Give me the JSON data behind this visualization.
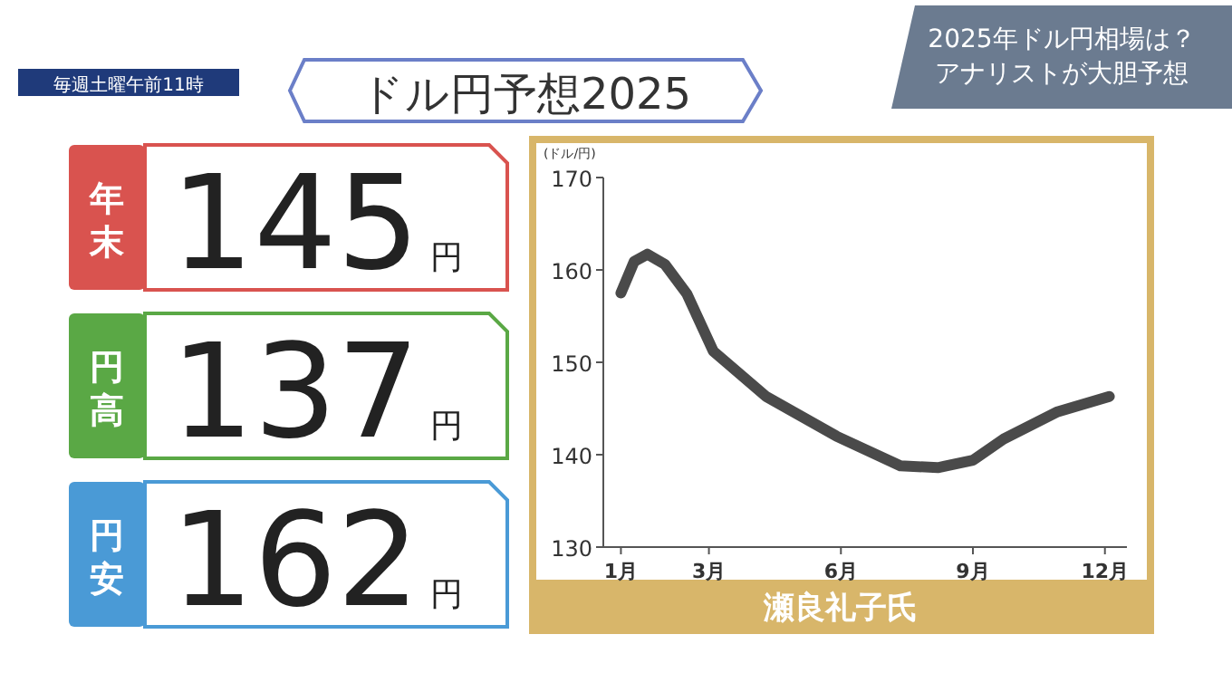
{
  "chart_data": [
    {
      "type": "other",
      "title": "ドル円予想2025",
      "subtitle": "2025年ドル円相場は？アナリストが大胆予想",
      "annotations": [
        "毎週土曜午前11時",
        "年末",
        "145円",
        "円高",
        "137円",
        "円安",
        "162円"
      ]
    },
    {
      "type": "line",
      "ylabel": "(ドル/円)",
      "x": [
        1,
        1.3,
        1.6,
        2.0,
        2.5,
        3.1,
        4.3,
        5.9,
        7.35,
        8.2,
        9,
        9.7,
        10.9,
        12.1
      ],
      "series": [
        {
          "color": "#4a4a4a",
          "values": [
            157.5,
            160.9,
            161.7,
            160.6,
            157.4,
            151.2,
            146.3,
            142.0,
            138.8,
            138.6,
            139.4,
            141.7,
            144.6,
            146.3
          ]
        }
      ],
      "xlim": [
        0.6,
        12.5
      ],
      "xticks": [
        {
          "value": 1,
          "label": "1月"
        },
        {
          "value": 3,
          "label": "3月"
        },
        {
          "value": 6,
          "label": "6月"
        },
        {
          "value": 9,
          "label": "9月"
        },
        {
          "value": 12,
          "label": "12月"
        }
      ],
      "ylim": [
        130,
        170
      ],
      "yticks": [
        130,
        140,
        150,
        160,
        170
      ],
      "marker": "none",
      "line_style": "solid",
      "grid": false,
      "annotations": [
        "瀬良礼子氏"
      ]
    }
  ]
}
